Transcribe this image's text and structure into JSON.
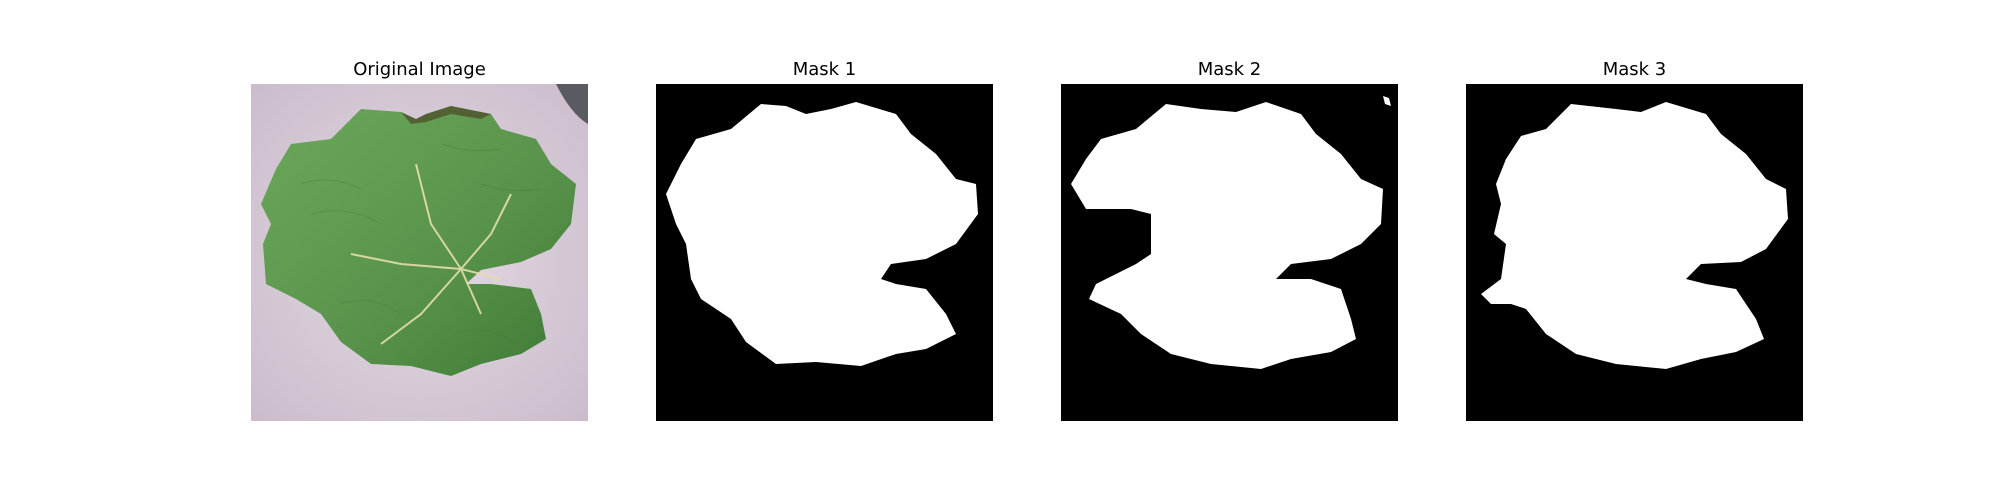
{
  "figure": {
    "panels": [
      {
        "title": "Original Image",
        "kind": "photo"
      },
      {
        "title": "Mask 1",
        "kind": "mask"
      },
      {
        "title": "Mask 2",
        "kind": "mask"
      },
      {
        "title": "Mask 3",
        "kind": "mask"
      }
    ],
    "colors": {
      "background": "#d8ccd8",
      "leaf": "#5f9a4e",
      "leaf_dark": "#3f7a35",
      "vein": "#e8e4b0",
      "mask_background": "#000000",
      "mask_foreground": "#ffffff"
    }
  }
}
